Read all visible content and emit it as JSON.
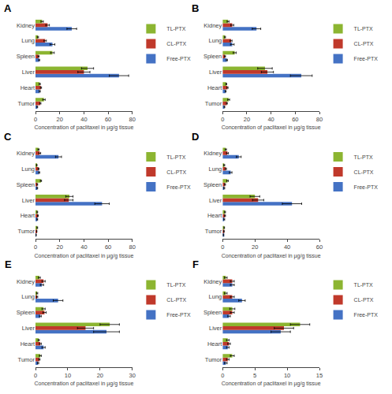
{
  "chart_data": [
    {
      "type": "bar",
      "orientation": "horizontal",
      "title": "A",
      "xlabel": "Concentration of paclitaxel in µg/g tissue",
      "categories": [
        "Tumor",
        "Heart",
        "Liver",
        "Spleen",
        "Lung",
        "Kidney"
      ],
      "series": [
        {
          "name": "TL-PTX",
          "color": "#8CB531",
          "values": [
            7.0,
            3.5,
            43.0,
            14.0,
            2.0,
            5.5
          ],
          "errors": [
            1.0,
            0.5,
            5.0,
            1.5,
            0.5,
            1.0
          ]
        },
        {
          "name": "CL-PTX",
          "color": "#C0392B",
          "values": [
            4.0,
            4.5,
            40.0,
            2.5,
            8.0,
            10.0
          ],
          "errors": [
            0.5,
            0.5,
            5.0,
            0.5,
            1.0,
            1.5
          ]
        },
        {
          "name": "Free-PTX",
          "color": "#4472C4",
          "values": [
            1.5,
            3.5,
            69.0,
            3.0,
            14.0,
            30.0
          ],
          "errors": [
            0.3,
            0.5,
            8.0,
            0.5,
            2.0,
            4.0
          ]
        }
      ],
      "xlim": [
        0,
        80
      ],
      "xticks": [
        0,
        20,
        40,
        60,
        80
      ],
      "legend": "upper right",
      "grid": false
    },
    {
      "type": "bar",
      "orientation": "horizontal",
      "title": "B",
      "xlabel": "Concentration of paclitaxel in µg/g tissue",
      "categories": [
        "Tumor",
        "Heart",
        "Liver",
        "Spleen",
        "Lung",
        "Kidney"
      ],
      "series": [
        {
          "name": "TL-PTX",
          "color": "#8CB531",
          "values": [
            5.0,
            3.0,
            35.0,
            10.0,
            2.0,
            4.5
          ],
          "errors": [
            0.8,
            0.4,
            6.0,
            1.2,
            0.4,
            0.8
          ]
        },
        {
          "name": "CL-PTX",
          "color": "#C0392B",
          "values": [
            3.5,
            4.0,
            37.0,
            2.0,
            7.0,
            8.0
          ],
          "errors": [
            0.4,
            0.5,
            5.0,
            0.4,
            0.8,
            1.2
          ]
        },
        {
          "name": "Free-PTX",
          "color": "#4472C4",
          "values": [
            1.5,
            2.5,
            65.0,
            3.5,
            8.0,
            28.0
          ],
          "errors": [
            0.3,
            0.4,
            9.0,
            0.5,
            1.5,
            3.5
          ]
        }
      ],
      "xlim": [
        0,
        80
      ],
      "xticks": [
        0,
        20,
        40,
        60,
        80
      ],
      "legend": "upper right",
      "grid": false
    },
    {
      "type": "bar",
      "orientation": "horizontal",
      "title": "C",
      "xlabel": "Concentration of paclitaxel in µg/g tissue",
      "categories": [
        "Tumor",
        "Heart",
        "Liver",
        "Spleen",
        "Lung",
        "Kidney"
      ],
      "series": [
        {
          "name": "TL-PTX",
          "color": "#8CB531",
          "values": [
            1.5,
            1.5,
            28.0,
            4.5,
            1.0,
            2.5
          ],
          "errors": [
            0.3,
            0.3,
            3.0,
            0.5,
            0.3,
            0.5
          ]
        },
        {
          "name": "CL-PTX",
          "color": "#C0392B",
          "values": [
            1.0,
            2.0,
            27.5,
            1.5,
            2.5,
            3.5
          ],
          "errors": [
            0.2,
            0.3,
            3.5,
            0.3,
            0.4,
            0.8
          ]
        },
        {
          "name": "Free-PTX",
          "color": "#4472C4",
          "values": [
            0.5,
            1.5,
            55.0,
            1.5,
            3.0,
            19.0
          ],
          "errors": [
            0.2,
            0.3,
            6.0,
            0.3,
            0.5,
            2.5
          ]
        }
      ],
      "xlim": [
        0,
        80
      ],
      "xticks": [
        0,
        20,
        40,
        60,
        80
      ],
      "legend": "upper right",
      "grid": false
    },
    {
      "type": "bar",
      "orientation": "horizontal",
      "title": "D",
      "xlabel": "Concentration of paclitaxel in µg/g tissue",
      "categories": [
        "Tumor",
        "Heart",
        "Liver",
        "Spleen",
        "Lung",
        "Kidney"
      ],
      "series": [
        {
          "name": "TL-PTX",
          "color": "#8CB531",
          "values": [
            1.0,
            1.5,
            20.0,
            3.0,
            1.0,
            2.0
          ],
          "errors": [
            0.2,
            0.3,
            3.0,
            0.5,
            0.3,
            0.4
          ]
        },
        {
          "name": "CL-PTX",
          "color": "#C0392B",
          "values": [
            0.8,
            1.5,
            22.0,
            1.5,
            2.0,
            3.0
          ],
          "errors": [
            0.2,
            0.3,
            3.5,
            0.3,
            0.4,
            0.6
          ]
        },
        {
          "name": "Free-PTX",
          "color": "#4472C4",
          "values": [
            0.5,
            1.0,
            43.0,
            1.0,
            5.0,
            10.0
          ],
          "errors": [
            0.2,
            0.3,
            6.0,
            0.3,
            0.8,
            1.5
          ]
        }
      ],
      "xlim": [
        0,
        60
      ],
      "xticks": [
        0,
        20,
        40,
        60
      ],
      "legend": "upper right",
      "grid": false
    },
    {
      "type": "bar",
      "orientation": "horizontal",
      "title": "E",
      "xlabel": "Concentration of paclitaxel in µg/g tissue",
      "categories": [
        "Tumor",
        "Heart",
        "Liver",
        "Spleen",
        "Lung",
        "Kidney"
      ],
      "series": [
        {
          "name": "TL-PTX",
          "color": "#8CB531",
          "values": [
            1.5,
            1.0,
            23.0,
            2.5,
            0.5,
            1.2
          ],
          "errors": [
            0.3,
            0.2,
            3.0,
            0.5,
            0.2,
            0.3
          ]
        },
        {
          "name": "CL-PTX",
          "color": "#C0392B",
          "values": [
            1.2,
            1.5,
            15.5,
            2.8,
            0.5,
            2.5
          ],
          "errors": [
            0.2,
            0.3,
            2.5,
            0.5,
            0.2,
            0.5
          ]
        },
        {
          "name": "Free-PTX",
          "color": "#4472C4",
          "values": [
            0.8,
            2.5,
            22.0,
            1.5,
            7.0,
            2.0
          ],
          "errors": [
            0.2,
            0.5,
            4.0,
            0.3,
            1.5,
            0.5
          ]
        }
      ],
      "xlim": [
        0,
        30
      ],
      "xticks": [
        0,
        10,
        20,
        30
      ],
      "legend": "upper right",
      "grid": false
    },
    {
      "type": "bar",
      "orientation": "horizontal",
      "title": "F",
      "xlabel": "Concentration of paclitaxel in µg/g tissue",
      "categories": [
        "Tumor",
        "Heart",
        "Liver",
        "Spleen",
        "Lung",
        "Kidney"
      ],
      "series": [
        {
          "name": "TL-PTX",
          "color": "#8CB531",
          "values": [
            1.5,
            0.8,
            12.0,
            1.5,
            0.5,
            0.5
          ],
          "errors": [
            0.3,
            0.2,
            1.5,
            0.4,
            0.2,
            0.2
          ]
        },
        {
          "name": "CL-PTX",
          "color": "#C0392B",
          "values": [
            0.8,
            1.0,
            9.5,
            1.5,
            1.5,
            1.5
          ],
          "errors": [
            0.2,
            0.2,
            1.5,
            0.3,
            0.3,
            0.3
          ]
        },
        {
          "name": "Free-PTX",
          "color": "#4472C4",
          "values": [
            0.5,
            0.8,
            9.0,
            1.0,
            3.0,
            1.5
          ],
          "errors": [
            0.2,
            0.2,
            1.5,
            0.2,
            0.5,
            0.3
          ]
        }
      ],
      "xlim": [
        0,
        15
      ],
      "xticks": [
        0,
        5,
        10,
        15
      ],
      "legend": "upper right",
      "grid": false
    }
  ]
}
